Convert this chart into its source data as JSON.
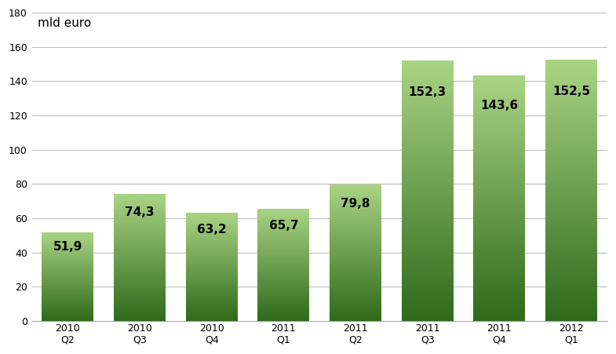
{
  "categories": [
    "2010 Q2",
    "2010 Q3",
    "2010 Q4",
    "2011 Q1",
    "2011 Q2",
    "2011 Q3",
    "2011 Q4",
    "2012 Q1"
  ],
  "values": [
    51.9,
    74.3,
    63.2,
    65.7,
    79.8,
    152.3,
    143.6,
    152.5
  ],
  "labels": [
    "51,9",
    "74,3",
    "63,2",
    "65,7",
    "79,8",
    "152,3",
    "143,6",
    "152,5"
  ],
  "ylabel_text": "mld euro",
  "ylim": [
    0,
    180
  ],
  "yticks": [
    0,
    20,
    40,
    60,
    80,
    100,
    120,
    140,
    160,
    180
  ],
  "bar_color_bottom": "#2d6a1a",
  "bar_color_top": "#aad484",
  "background_color": "#ffffff",
  "grid_color": "#c0c0c0",
  "label_fontsize": 11,
  "axis_fontsize": 9,
  "ylabel_fontsize": 11,
  "bar_width": 0.72,
  "num_gradient_steps": 200,
  "figsize": [
    7.85,
    4.51
  ],
  "dpi": 100
}
